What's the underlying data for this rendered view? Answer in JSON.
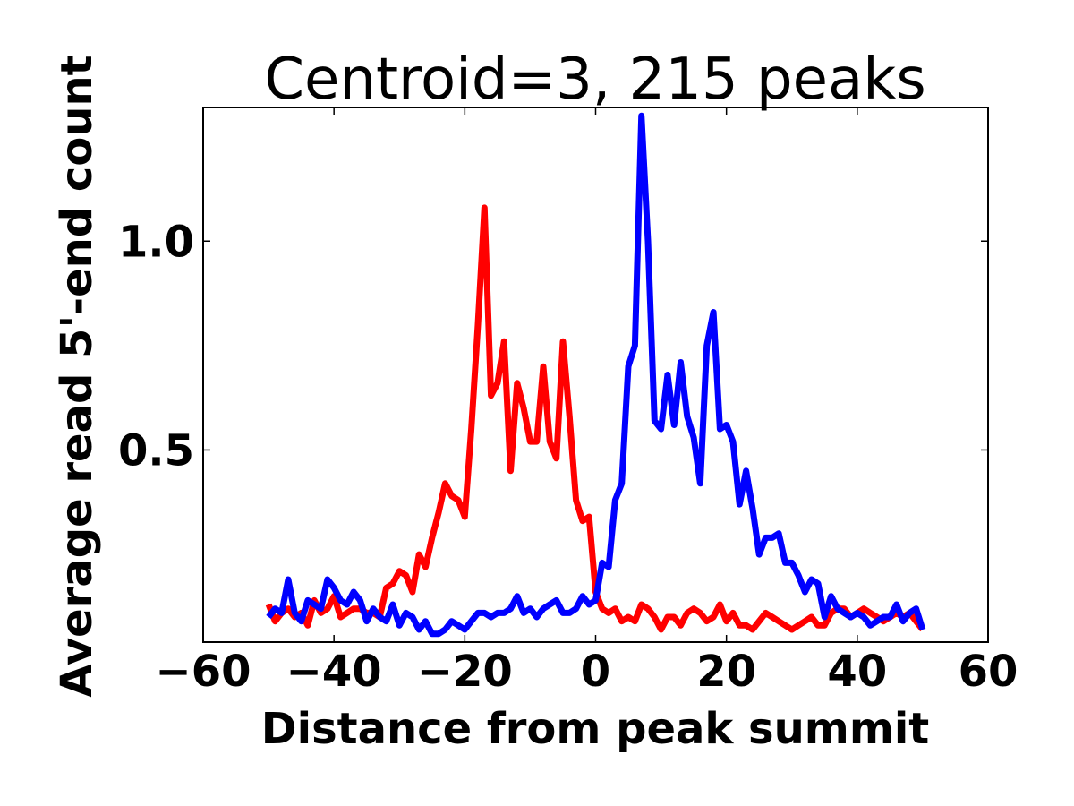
{
  "chart_data": {
    "type": "line",
    "title": "Centroid=3, 215 peaks",
    "xlabel": "Distance from peak summit",
    "ylabel": "Average read 5'-end count",
    "xlim": [
      -60,
      60
    ],
    "ylim": [
      0.04,
      1.32
    ],
    "xticks": [
      -60,
      -40,
      -20,
      0,
      20,
      40,
      60
    ],
    "xtick_labels": [
      "−60",
      "−40",
      "−20",
      "0",
      "20",
      "40",
      "60"
    ],
    "yticks": [
      0.5,
      1.0
    ],
    "ytick_labels": [
      "0.5",
      "1.0"
    ],
    "grid": false,
    "legend": "none",
    "series": [
      {
        "color": "#ff0000",
        "x": [
          -50,
          -49,
          -48,
          -47,
          -46,
          -45,
          -44,
          -43,
          -42,
          -41,
          -40,
          -39,
          -38,
          -37,
          -36,
          -35,
          -34,
          -33,
          -32,
          -31,
          -30,
          -29,
          -28,
          -27,
          -26,
          -25,
          -24,
          -23,
          -22,
          -21,
          -20,
          -19,
          -18,
          -17,
          -16,
          -15,
          -14,
          -13,
          -12,
          -11,
          -10,
          -9,
          -8,
          -7,
          -6,
          -5,
          -4,
          -3,
          -2,
          -1,
          0,
          1,
          2,
          3,
          4,
          5,
          6,
          7,
          8,
          9,
          10,
          11,
          12,
          13,
          14,
          15,
          16,
          17,
          18,
          19,
          20,
          21,
          22,
          23,
          24,
          25,
          26,
          27,
          28,
          29,
          30,
          31,
          32,
          33,
          34,
          35,
          36,
          37,
          38,
          39,
          40,
          41,
          42,
          43,
          44,
          45,
          46,
          47,
          48,
          49,
          50
        ],
        "y": [
          0.13,
          0.09,
          0.11,
          0.12,
          0.1,
          0.11,
          0.08,
          0.14,
          0.11,
          0.12,
          0.15,
          0.1,
          0.11,
          0.12,
          0.12,
          0.11,
          0.11,
          0.1,
          0.17,
          0.18,
          0.21,
          0.2,
          0.16,
          0.25,
          0.22,
          0.29,
          0.35,
          0.42,
          0.39,
          0.38,
          0.34,
          0.55,
          0.8,
          1.08,
          0.63,
          0.66,
          0.76,
          0.45,
          0.66,
          0.6,
          0.52,
          0.52,
          0.7,
          0.52,
          0.48,
          0.76,
          0.58,
          0.38,
          0.33,
          0.34,
          0.16,
          0.12,
          0.11,
          0.12,
          0.09,
          0.1,
          0.09,
          0.13,
          0.12,
          0.1,
          0.07,
          0.1,
          0.1,
          0.08,
          0.11,
          0.12,
          0.11,
          0.09,
          0.1,
          0.13,
          0.09,
          0.11,
          0.08,
          0.08,
          0.07,
          0.09,
          0.11,
          0.1,
          0.09,
          0.08,
          0.07,
          0.08,
          0.09,
          0.1,
          0.08,
          0.08,
          0.11,
          0.12,
          0.12,
          0.1,
          0.11,
          0.12,
          0.11,
          0.1,
          0.09,
          0.1,
          0.11,
          0.1,
          0.11,
          0.09,
          0.07
        ]
      },
      {
        "color": "#0000ff",
        "x": [
          -50,
          -49,
          -48,
          -47,
          -46,
          -45,
          -44,
          -43,
          -42,
          -41,
          -40,
          -39,
          -38,
          -37,
          -36,
          -35,
          -34,
          -33,
          -32,
          -31,
          -30,
          -29,
          -28,
          -27,
          -26,
          -25,
          -24,
          -23,
          -22,
          -21,
          -20,
          -19,
          -18,
          -17,
          -16,
          -15,
          -14,
          -13,
          -12,
          -11,
          -10,
          -9,
          -8,
          -7,
          -6,
          -5,
          -4,
          -3,
          -2,
          -1,
          0,
          1,
          2,
          3,
          4,
          5,
          6,
          7,
          8,
          9,
          10,
          11,
          12,
          13,
          14,
          15,
          16,
          17,
          18,
          19,
          20,
          21,
          22,
          23,
          24,
          25,
          26,
          27,
          28,
          29,
          30,
          31,
          32,
          33,
          34,
          35,
          36,
          37,
          38,
          39,
          40,
          41,
          42,
          43,
          44,
          45,
          46,
          47,
          48,
          49,
          50
        ],
        "y": [
          0.1,
          0.12,
          0.11,
          0.19,
          0.11,
          0.09,
          0.14,
          0.13,
          0.12,
          0.19,
          0.17,
          0.14,
          0.13,
          0.16,
          0.14,
          0.09,
          0.12,
          0.1,
          0.09,
          0.13,
          0.08,
          0.11,
          0.1,
          0.07,
          0.09,
          0.06,
          0.06,
          0.07,
          0.09,
          0.08,
          0.07,
          0.09,
          0.11,
          0.11,
          0.1,
          0.11,
          0.11,
          0.12,
          0.15,
          0.11,
          0.12,
          0.1,
          0.12,
          0.13,
          0.14,
          0.11,
          0.11,
          0.12,
          0.15,
          0.13,
          0.14,
          0.23,
          0.22,
          0.38,
          0.42,
          0.7,
          0.75,
          1.3,
          1.0,
          0.57,
          0.55,
          0.68,
          0.56,
          0.71,
          0.58,
          0.53,
          0.42,
          0.75,
          0.83,
          0.55,
          0.56,
          0.52,
          0.37,
          0.45,
          0.36,
          0.25,
          0.29,
          0.29,
          0.3,
          0.23,
          0.23,
          0.2,
          0.16,
          0.19,
          0.18,
          0.1,
          0.15,
          0.12,
          0.11,
          0.1,
          0.11,
          0.1,
          0.08,
          0.09,
          0.1,
          0.1,
          0.13,
          0.09,
          0.11,
          0.12,
          0.07
        ]
      }
    ]
  }
}
